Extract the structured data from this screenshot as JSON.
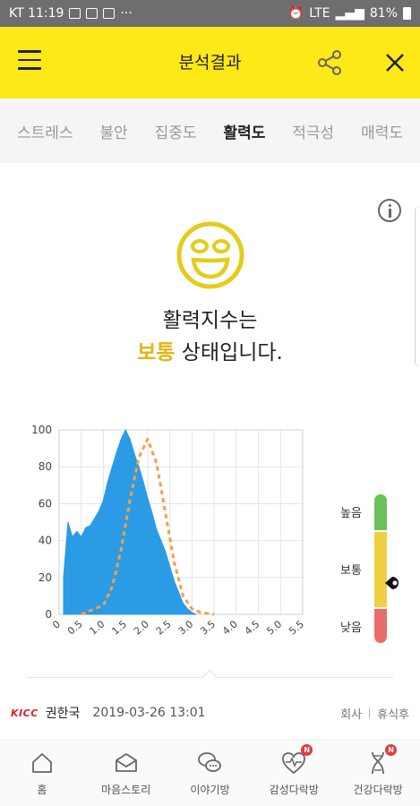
{
  "status_bar": {
    "carrier_time": "KT 11:19",
    "dots": "···",
    "network": "LTE",
    "battery": "81%"
  },
  "header": {
    "title": "분석결과",
    "menu_icon": "hamburger-icon",
    "share_icon": "share-icon",
    "close_icon": "close-icon"
  },
  "tabs": [
    {
      "label": "스트레스"
    },
    {
      "label": "불안"
    },
    {
      "label": "집중도"
    },
    {
      "label": "활력도"
    },
    {
      "label": "적극성"
    },
    {
      "label": "매력도"
    }
  ],
  "active_tab_index": 3,
  "result": {
    "line1": "활력지수는",
    "level": "보통",
    "line2_suffix": " 상태입니다."
  },
  "scale": {
    "high": "높음",
    "mid": "보통",
    "low": "낮음",
    "colors": {
      "high": "#6cc05b",
      "mid": "#f0cf43",
      "low": "#ec6b6b"
    }
  },
  "footer": {
    "brand": "KICC",
    "user": "권한국",
    "timestamp": "2019-03-26 13:01",
    "link1": "회사",
    "link2": "휴식후"
  },
  "bottom_nav": [
    {
      "label": "홈",
      "icon": "home-icon",
      "badge": ""
    },
    {
      "label": "마음스토리",
      "icon": "mailbox-icon",
      "badge": ""
    },
    {
      "label": "이야기방",
      "icon": "chat-bubbles-icon",
      "badge": ""
    },
    {
      "label": "감성다락방",
      "icon": "heart-pulse-icon",
      "badge": "N"
    },
    {
      "label": "건강다락방",
      "icon": "dna-icon",
      "badge": "N"
    }
  ],
  "colors": {
    "accent": "#fde818",
    "histogram": "#2b9be6",
    "curve": "#f3a04a"
  },
  "chart_data": {
    "type": "area",
    "xlim": [
      0,
      5.5
    ],
    "ylim": [
      0,
      100
    ],
    "x_ticks": [
      "0",
      "0.5",
      "1.0",
      "1.5",
      "2.0",
      "2.5",
      "3.0",
      "3.5",
      "4.0",
      "4.5",
      "5.0",
      "5.5"
    ],
    "y_ticks": [
      "0",
      "20",
      "40",
      "60",
      "80",
      "100"
    ],
    "series": [
      {
        "style": "filled-histogram",
        "x": [
          0.1,
          0.2,
          0.3,
          0.4,
          0.5,
          0.6,
          0.7,
          0.8,
          0.9,
          1.0,
          1.1,
          1.2,
          1.3,
          1.4,
          1.5,
          1.6,
          1.7,
          1.8,
          1.9,
          2.0,
          2.1,
          2.2,
          2.3,
          2.4,
          2.5,
          2.6,
          2.7,
          2.8,
          2.9,
          3.0,
          3.1
        ],
        "y": [
          20,
          50,
          42,
          45,
          42,
          47,
          48,
          52,
          56,
          62,
          72,
          80,
          88,
          95,
          100,
          95,
          87,
          80,
          72,
          63,
          55,
          46,
          40,
          34,
          26,
          18,
          12,
          6,
          3,
          1,
          0
        ]
      },
      {
        "style": "dashed-curve",
        "x": [
          0.5,
          1.0,
          1.2,
          1.4,
          1.6,
          1.8,
          2.0,
          2.2,
          2.4,
          2.6,
          2.8,
          3.0,
          3.2,
          3.5
        ],
        "y": [
          0,
          5,
          15,
          35,
          62,
          85,
          95,
          82,
          55,
          28,
          10,
          3,
          1,
          0
        ]
      }
    ]
  }
}
